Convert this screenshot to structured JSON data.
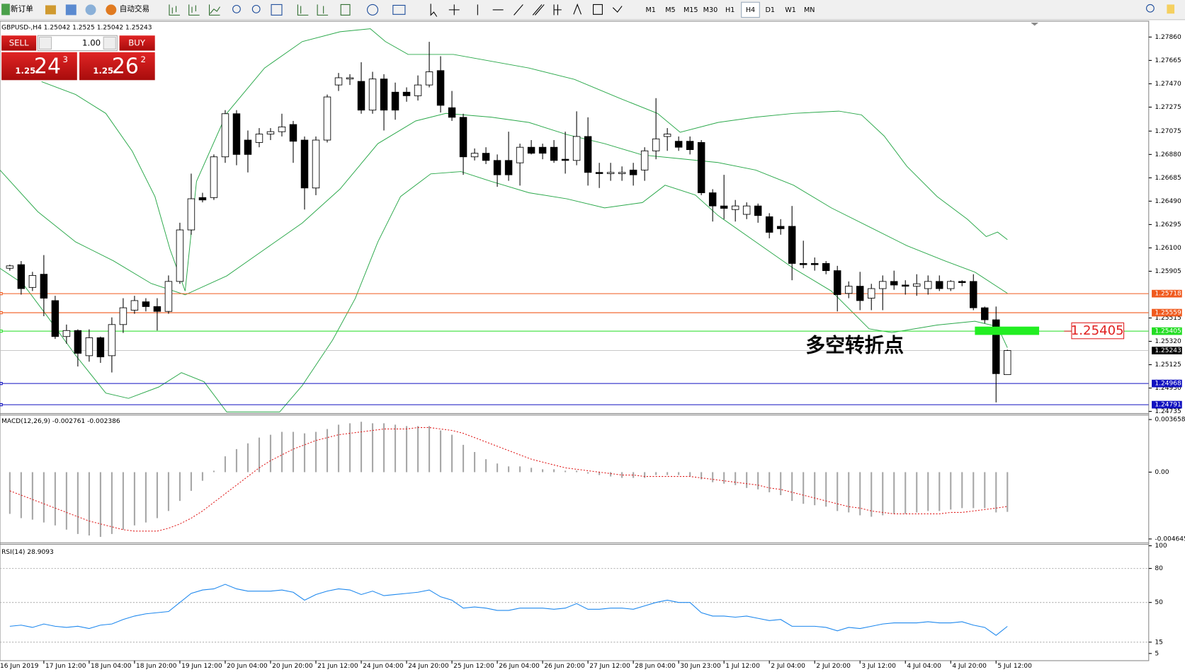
{
  "toolbar": {
    "new_order": "新订单",
    "auto_trading": "自动交易",
    "timeframes": [
      "M1",
      "M5",
      "M15",
      "M30",
      "H1",
      "H4",
      "D1",
      "W1",
      "MN"
    ],
    "active_timeframe": "H4"
  },
  "trade_panel": {
    "sell": "SELL",
    "buy": "BUY",
    "lot": "1.00",
    "bid": {
      "big": "1.25",
      "pips": "24",
      "fraction": "3"
    },
    "ask": {
      "big": "1.25",
      "pips": "26",
      "fraction": "2"
    }
  },
  "chart_data": [
    {
      "type": "candlestick",
      "title": "GBPUSD-,H4",
      "candles": [
        [
          1.2593,
          1.2596,
          1.2591,
          1.2595
        ],
        [
          1.2596,
          1.2599,
          1.2571,
          1.2576
        ],
        [
          1.2577,
          1.259,
          1.2574,
          1.2587
        ],
        [
          1.2588,
          1.2604,
          1.2553,
          1.2568
        ],
        [
          1.2566,
          1.257,
          1.2534,
          1.2536
        ],
        [
          1.2536,
          1.2546,
          1.253,
          1.2541
        ],
        [
          1.2541,
          1.2542,
          1.2511,
          1.2522
        ],
        [
          1.252,
          1.2542,
          1.2515,
          1.2535
        ],
        [
          1.2535,
          1.2536,
          1.2514,
          1.2519
        ],
        [
          1.252,
          1.2552,
          1.2506,
          1.2546
        ],
        [
          1.2546,
          1.2568,
          1.2539,
          1.256
        ],
        [
          1.2558,
          1.257,
          1.2555,
          1.2566
        ],
        [
          1.2565,
          1.2568,
          1.2557,
          1.2561
        ],
        [
          1.2561,
          1.2568,
          1.2541,
          1.2557
        ],
        [
          1.2557,
          1.2587,
          1.2555,
          1.2582
        ],
        [
          1.2582,
          1.2631,
          1.258,
          1.2625
        ],
        [
          1.2625,
          1.2672,
          1.2621,
          1.2651
        ],
        [
          1.2652,
          1.2656,
          1.2648,
          1.265
        ],
        [
          1.2652,
          1.2688,
          1.265,
          1.2686
        ],
        [
          1.2686,
          1.2725,
          1.2681,
          1.2722
        ],
        [
          1.2722,
          1.2725,
          1.2679,
          1.2688
        ],
        [
          1.27,
          1.2708,
          1.2673,
          1.2688
        ],
        [
          1.2698,
          1.271,
          1.2694,
          1.2705
        ],
        [
          1.2705,
          1.271,
          1.27,
          1.2707
        ],
        [
          1.2707,
          1.2722,
          1.2703,
          1.2711
        ],
        [
          1.2713,
          1.2716,
          1.2681,
          1.2699
        ],
        [
          1.27,
          1.2703,
          1.2642,
          1.266
        ],
        [
          1.266,
          1.2703,
          1.2654,
          1.27
        ],
        [
          1.27,
          1.2738,
          1.2698,
          1.2736
        ],
        [
          1.2746,
          1.2756,
          1.2741,
          1.2752
        ],
        [
          1.2751,
          1.2755,
          1.2746,
          1.2752
        ],
        [
          1.2749,
          1.2765,
          1.2722,
          1.2725
        ],
        [
          1.2725,
          1.2757,
          1.2722,
          1.2751
        ],
        [
          1.2751,
          1.2755,
          1.2708,
          1.2725
        ],
        [
          1.274,
          1.2748,
          1.2717,
          1.2725
        ],
        [
          1.274,
          1.2744,
          1.2732,
          1.2737
        ],
        [
          1.2737,
          1.2754,
          1.2733,
          1.2746
        ],
        [
          1.2746,
          1.2782,
          1.2744,
          1.2757
        ],
        [
          1.2758,
          1.277,
          1.2723,
          1.2729
        ],
        [
          1.2727,
          1.2741,
          1.2716,
          1.2719
        ],
        [
          1.2719,
          1.2722,
          1.2671,
          1.2686
        ],
        [
          1.2686,
          1.2693,
          1.2683,
          1.2689
        ],
        [
          1.2689,
          1.2694,
          1.268,
          1.2683
        ],
        [
          1.2683,
          1.2688,
          1.2661,
          1.2671
        ],
        [
          1.2683,
          1.2707,
          1.2666,
          1.2671
        ],
        [
          1.2681,
          1.2697,
          1.2662,
          1.2694
        ],
        [
          1.2694,
          1.27,
          1.2688,
          1.2689
        ],
        [
          1.2694,
          1.2697,
          1.2684,
          1.2689
        ],
        [
          1.2694,
          1.27,
          1.2681,
          1.2683
        ],
        [
          1.2684,
          1.2707,
          1.2672,
          1.2683
        ],
        [
          1.2683,
          1.2724,
          1.2679,
          1.2703
        ],
        [
          1.2703,
          1.2719,
          1.2662,
          1.2673
        ],
        [
          1.2673,
          1.2681,
          1.266,
          1.2672
        ],
        [
          1.2672,
          1.2681,
          1.2666,
          1.2673
        ],
        [
          1.2672,
          1.2678,
          1.2666,
          1.2673
        ],
        [
          1.2675,
          1.2681,
          1.2662,
          1.2671
        ],
        [
          1.2675,
          1.2694,
          1.2666,
          1.2691
        ],
        [
          1.2691,
          1.2735,
          1.2684,
          1.2701
        ],
        [
          1.2703,
          1.271,
          1.2691,
          1.2705
        ],
        [
          1.2699,
          1.2703,
          1.2691,
          1.2694
        ],
        [
          1.2699,
          1.2703,
          1.2688,
          1.2692
        ],
        [
          1.2698,
          1.27,
          1.2654,
          1.2656
        ],
        [
          1.2656,
          1.2659,
          1.2632,
          1.2645
        ],
        [
          1.2645,
          1.2671,
          1.2634,
          1.2643
        ],
        [
          1.2642,
          1.265,
          1.2632,
          1.2645
        ],
        [
          1.2638,
          1.2648,
          1.2634,
          1.2645
        ],
        [
          1.2645,
          1.2647,
          1.2631,
          1.2637
        ],
        [
          1.2636,
          1.2639,
          1.2618,
          1.2623
        ],
        [
          1.2628,
          1.2634,
          1.2621,
          1.2626
        ],
        [
          1.2628,
          1.2645,
          1.2583,
          1.2597
        ],
        [
          1.2597,
          1.2616,
          1.2593,
          1.2596
        ],
        [
          1.2597,
          1.2602,
          1.2591,
          1.2596
        ],
        [
          1.2597,
          1.2599,
          1.2588,
          1.2591
        ],
        [
          1.2591,
          1.2595,
          1.2557,
          1.2571
        ],
        [
          1.2572,
          1.2582,
          1.2568,
          1.2578
        ],
        [
          1.2578,
          1.259,
          1.2558,
          1.2566
        ],
        [
          1.2568,
          1.258,
          1.2558,
          1.2576
        ],
        [
          1.2576,
          1.2587,
          1.2558,
          1.2582
        ],
        [
          1.2582,
          1.2591,
          1.2575,
          1.2579
        ],
        [
          1.2579,
          1.2583,
          1.2571,
          1.2578
        ],
        [
          1.2578,
          1.2588,
          1.257,
          1.258
        ],
        [
          1.2576,
          1.2587,
          1.2571,
          1.2582
        ],
        [
          1.2582,
          1.2587,
          1.2574,
          1.2576
        ],
        [
          1.2576,
          1.2583,
          1.2574,
          1.2582
        ],
        [
          1.2582,
          1.2583,
          1.2578,
          1.2581
        ],
        [
          1.2582,
          1.2588,
          1.2558,
          1.256
        ],
        [
          1.256,
          1.2561,
          1.2547,
          1.255
        ],
        [
          1.255,
          1.2561,
          1.2481,
          1.2505
        ],
        [
          1.25042,
          1.2525,
          1.25042,
          1.25243
        ]
      ],
      "ylim": [
        1.24724,
        1.2798
      ],
      "yticks": [
        {
          "value": 1.2786,
          "label": "1.27860"
        },
        {
          "value": 1.27665,
          "label": "1.27665"
        },
        {
          "value": 1.2747,
          "label": "1.27470"
        },
        {
          "value": 1.27275,
          "label": "1.27275"
        },
        {
          "value": 1.27075,
          "label": "1.27075"
        },
        {
          "value": 1.2688,
          "label": "1.26880"
        },
        {
          "value": 1.26685,
          "label": "1.26685"
        },
        {
          "value": 1.2649,
          "label": "1.26490"
        },
        {
          "value": 1.26295,
          "label": "1.26295"
        },
        {
          "value": 1.261,
          "label": "1.26100"
        },
        {
          "value": 1.25905,
          "label": "1.25905"
        },
        {
          "value": 1.25515,
          "label": "1.25515"
        },
        {
          "value": 1.2532,
          "label": "1.25320"
        },
        {
          "value": 1.25125,
          "label": "1.25125"
        },
        {
          "value": 1.2493,
          "label": "1.24930"
        },
        {
          "value": 1.24735,
          "label": "1.24735"
        }
      ],
      "levels": [
        {
          "value": 1.25718,
          "color": "#f05a1e"
        },
        {
          "value": 1.25559,
          "color": "#f05a1e"
        },
        {
          "value": 1.25405,
          "color": "#22dd22"
        },
        {
          "value": 1.24968,
          "color": "#1010c0"
        },
        {
          "value": 1.24791,
          "color": "#1010c0"
        }
      ],
      "annotation": {
        "text": "多空转折点",
        "color": "#22bb22"
      },
      "x_labels": [
        "16 Jun 2019",
        "17 Jun 12:00",
        "18 Jun 04:00",
        "18 Jun 20:00",
        "19 Jun 12:00",
        "20 Jun 04:00",
        "20 Jun 20:00",
        "21 Jun 12:00",
        "24 Jun 04:00",
        "24 Jun 20:00",
        "25 Jun 12:00",
        "26 Jun 04:00",
        "26 Jun 20:00",
        "27 Jun 12:00",
        "28 Jun 04:00",
        "30 Jun 23:00",
        "1 Jul 12:00",
        "2 Jul 04:00",
        "2 Jul 20:00",
        "3 Jul 12:00",
        "4 Jul 04:00",
        "4 Jul 20:00",
        "5 Jul 12:00"
      ]
    },
    {
      "type": "macd",
      "title": "MACD(12,26,9)",
      "histogram": {
        "color": "#a8a8a8",
        "values": [
          -0.0029,
          -0.0032,
          -0.0033,
          -0.0035,
          -0.0037,
          -0.004,
          -0.0043,
          -0.0044,
          -0.0045,
          -0.0043,
          -0.004,
          -0.0037,
          -0.0035,
          -0.0032,
          -0.0027,
          -0.002,
          -0.0013,
          -0.0006,
          0.0001,
          0.0011,
          0.0016,
          0.002,
          0.0024,
          0.0026,
          0.0028,
          0.0028,
          0.0027,
          0.0028,
          0.003,
          0.0033,
          0.0034,
          0.0035,
          0.0034,
          0.0034,
          0.0033,
          0.0032,
          0.0032,
          0.0032,
          0.0029,
          0.0026,
          0.0019,
          0.0014,
          0.0009,
          0.0006,
          0.0004,
          0.0004,
          0.0003,
          0.0002,
          0.0002,
          0.0001,
          0.0001,
          -0.0001,
          -0.0002,
          -0.0003,
          -0.0004,
          -0.0004,
          -0.0004,
          -0.0002,
          -0.0002,
          -0.0002,
          -0.0003,
          -0.0005,
          -0.0007,
          -0.0008,
          -0.0009,
          -0.0011,
          -0.0012,
          -0.0014,
          -0.0016,
          -0.002,
          -0.0022,
          -0.0023,
          -0.0024,
          -0.0027,
          -0.0028,
          -0.003,
          -0.0031,
          -0.003,
          -0.0029,
          -0.0029,
          -0.0028,
          -0.0027,
          -0.0027,
          -0.0026,
          -0.0025,
          -0.0025,
          -0.0025,
          -0.0028,
          -0.002761
        ]
      },
      "signal": {
        "color": "#e02020",
        "values": [
          -0.0013,
          -0.0016,
          -0.0019,
          -0.0022,
          -0.0025,
          -0.0028,
          -0.0031,
          -0.0034,
          -0.0036,
          -0.0038,
          -0.004,
          -0.0041,
          -0.0041,
          -0.0041,
          -0.0039,
          -0.0036,
          -0.0032,
          -0.0027,
          -0.0021,
          -0.0015,
          -0.0009,
          -0.0003,
          0.0003,
          0.0008,
          0.0012,
          0.0016,
          0.0019,
          0.0022,
          0.0024,
          0.0026,
          0.0027,
          0.0028,
          0.0029,
          0.003,
          0.003,
          0.003,
          0.0031,
          0.0031,
          0.003,
          0.0029,
          0.0027,
          0.0024,
          0.0021,
          0.0018,
          0.0015,
          0.0012,
          0.0009,
          0.0007,
          0.0005,
          0.0003,
          0.0002,
          0.0001,
          0,
          -0.0001,
          -0.0002,
          -0.0002,
          -0.0003,
          -0.0003,
          -0.0003,
          -0.0003,
          -0.0003,
          -0.0004,
          -0.0005,
          -0.0006,
          -0.0007,
          -0.0008,
          -0.0009,
          -0.0011,
          -0.0012,
          -0.0014,
          -0.0016,
          -0.0018,
          -0.002,
          -0.0022,
          -0.0024,
          -0.0025,
          -0.0027,
          -0.0028,
          -0.0029,
          -0.0029,
          -0.0029,
          -0.0029,
          -0.0029,
          -0.0028,
          -0.0028,
          -0.0027,
          -0.0026,
          -0.0025,
          -0.002386
        ]
      },
      "ylim": [
        -0.004645,
        0.003658
      ],
      "yticks": [
        0.003658,
        {
          "value": 0,
          "label": "0.00"
        },
        -0.004645
      ]
    },
    {
      "type": "rsi",
      "title": "RSI(14)",
      "color": "#1e88ee",
      "values": [
        29,
        30,
        28,
        31,
        29,
        28,
        29,
        27,
        30,
        31,
        35,
        38,
        40,
        41,
        42,
        50,
        58,
        61,
        62,
        66,
        62,
        60,
        60,
        60,
        61,
        59,
        52,
        57,
        60,
        62,
        61,
        57,
        60,
        56,
        57,
        58,
        59,
        61,
        55,
        52,
        45,
        46,
        45,
        43,
        43,
        45,
        45,
        45,
        44,
        45,
        49,
        44,
        44,
        45,
        45,
        44,
        47,
        50,
        52,
        50,
        50,
        41,
        38,
        38,
        37,
        38,
        36,
        34,
        35,
        29,
        29,
        29,
        28,
        25,
        28,
        27,
        29,
        31,
        32,
        32,
        32,
        33,
        32,
        32,
        33,
        30,
        28,
        21,
        28.9093
      ],
      "ylim": [
        0,
        100
      ],
      "yticks": [
        100,
        80,
        50,
        15,
        5
      ]
    }
  ]
}
